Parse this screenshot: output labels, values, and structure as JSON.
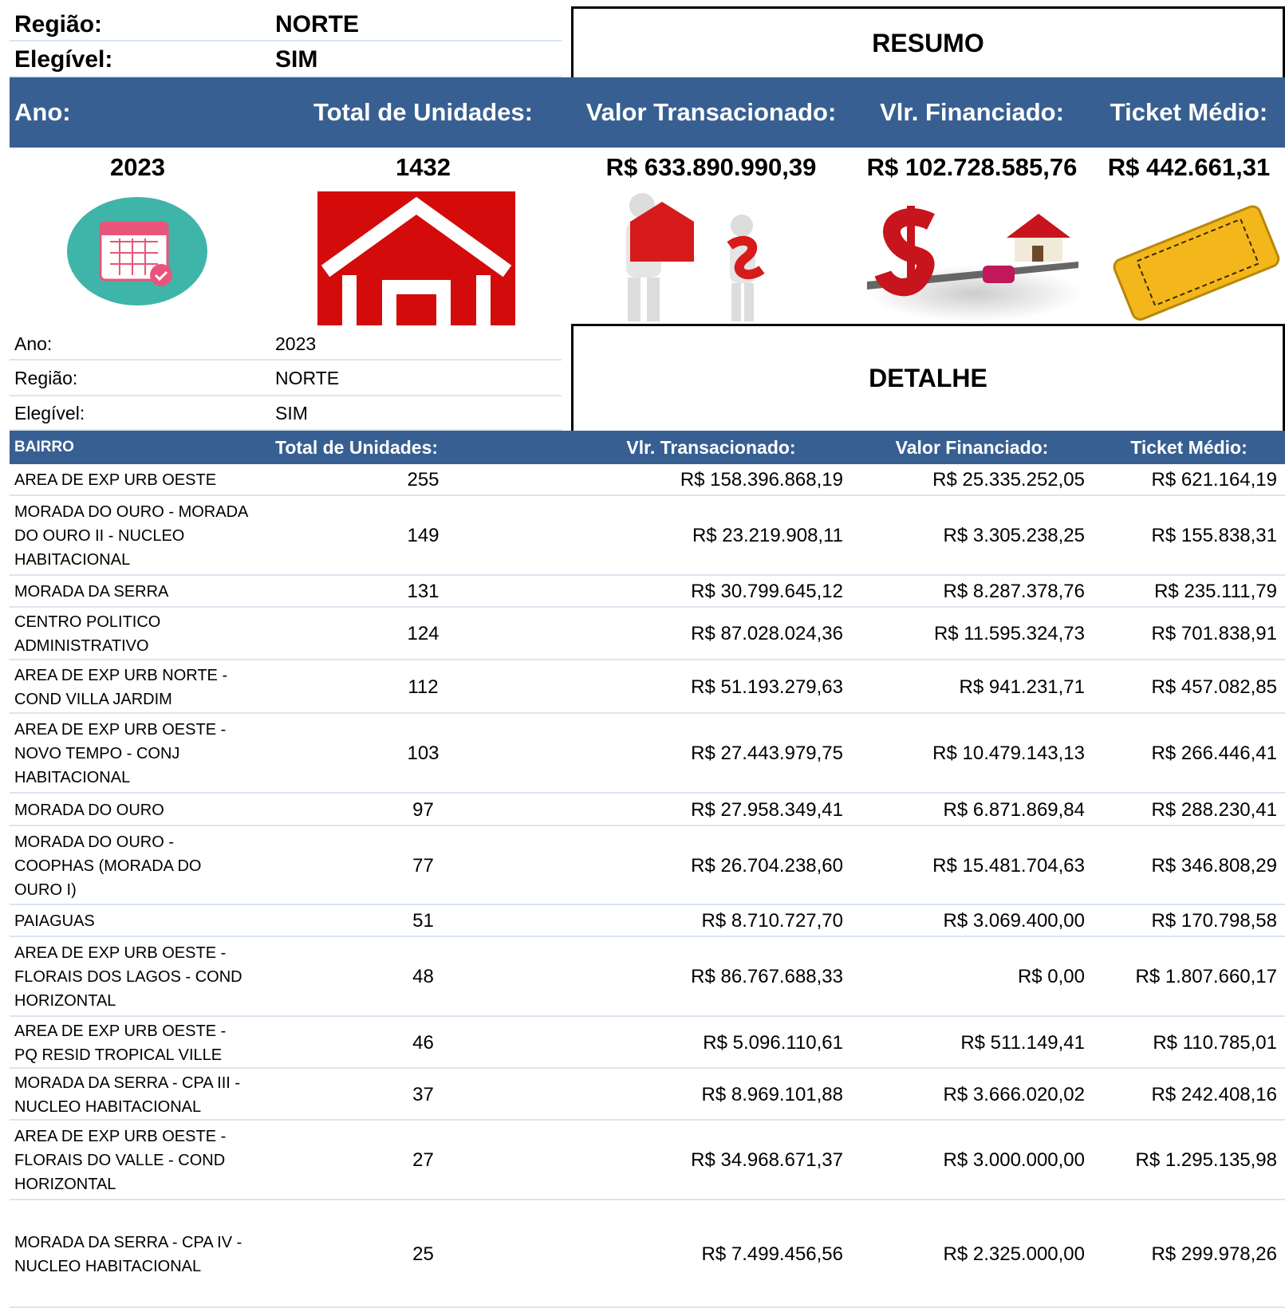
{
  "filters": {
    "regiao_label": "Região:",
    "regiao": "NORTE",
    "elegivel_label": "Elegível:",
    "elegivel": "SIM"
  },
  "resumo": {
    "title": "RESUMO",
    "headers": [
      "Ano:",
      "Total de Unidades:",
      "Valor Transacionado:",
      "Vlr. Financiado:",
      "Ticket Médio:"
    ],
    "values": [
      2023,
      1432,
      "R$ 633.890.990,39",
      "R$ 102.728.585,76",
      "R$ 442.661,31"
    ]
  },
  "detalhe": {
    "title": "DETALHE",
    "filters": [
      [
        "Ano:",
        2023
      ],
      [
        "Região:",
        "NORTE"
      ],
      [
        "Elegível:",
        "SIM"
      ]
    ],
    "headers": [
      "BAIRRO",
      "Total de Unidades:",
      "Vlr. Transacionado:",
      "Valor Financiado:",
      "Ticket Médio:"
    ],
    "rows": [
      [
        "AREA DE EXP URB OESTE",
        255,
        "R$ 158.396.868,19",
        "R$ 25.335.252,05",
        "R$ 621.164,19"
      ],
      [
        "MORADA DO OURO - MORADA DO OURO II - NUCLEO HABITACIONAL",
        149,
        "R$ 23.219.908,11",
        "R$ 3.305.238,25",
        "R$ 155.838,31"
      ],
      [
        "MORADA DA SERRA",
        131,
        "R$ 30.799.645,12",
        "R$ 8.287.378,76",
        "R$ 235.111,79"
      ],
      [
        "CENTRO POLITICO ADMINISTRATIVO",
        124,
        "R$ 87.028.024,36",
        "R$ 11.595.324,73",
        "R$ 701.838,91"
      ],
      [
        "AREA DE EXP URB NORTE - COND VILLA JARDIM",
        112,
        "R$ 51.193.279,63",
        "R$ 941.231,71",
        "R$ 457.082,85"
      ],
      [
        "AREA DE EXP URB OESTE - NOVO TEMPO - CONJ HABITACIONAL",
        103,
        "R$ 27.443.979,75",
        "R$ 10.479.143,13",
        "R$ 266.446,41"
      ],
      [
        "MORADA DO OURO",
        97,
        "R$ 27.958.349,41",
        "R$ 6.871.869,84",
        "R$ 288.230,41"
      ],
      [
        "MORADA DO OURO - COOPHAS (MORADA DO OURO I)",
        77,
        "R$ 26.704.238,60",
        "R$ 15.481.704,63",
        "R$ 346.808,29"
      ],
      [
        "PAIAGUAS",
        51,
        "R$ 8.710.727,70",
        "R$ 3.069.400,00",
        "R$ 170.798,58"
      ],
      [
        "AREA DE EXP URB OESTE - FLORAIS DOS LAGOS - COND HORIZONTAL",
        48,
        "R$ 86.767.688,33",
        "R$ 0,00",
        "R$ 1.807.660,17"
      ],
      [
        "AREA DE EXP URB OESTE - PQ RESID TROPICAL VILLE",
        46,
        "R$ 5.096.110,61",
        "R$ 511.149,41",
        "R$ 110.785,01"
      ],
      [
        "MORADA DA SERRA - CPA III - NUCLEO HABITACIONAL",
        37,
        "R$ 8.969.101,88",
        "R$ 3.666.020,02",
        "R$ 242.408,16"
      ],
      [
        "AREA DE EXP URB OESTE - FLORAIS DO  VALLE - COND HORIZONTAL",
        27,
        "R$ 34.968.671,37",
        "R$ 3.000.000,00",
        "R$ 1.295.135,98"
      ],
      [
        "MORADA DA SERRA - CPA IV - NUCLEO HABITACIONAL",
        25,
        "R$ 7.499.456,56",
        "R$ 2.325.000,00",
        "R$ 299.978,26"
      ]
    ]
  }
}
